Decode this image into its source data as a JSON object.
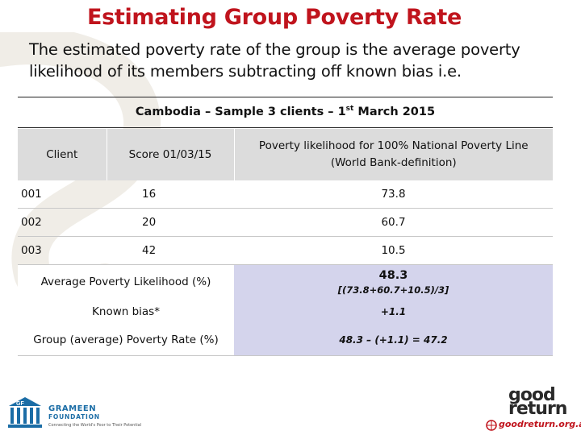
{
  "slide": {
    "title": "Estimating Group Poverty Rate",
    "intro": "The estimated poverty rate of the group is the average poverty likelihood of its members subtracting off known bias i.e."
  },
  "caption": {
    "prefix": "Cambodia – Sample 3 clients – 1",
    "sup": "st",
    "suffix": " March 2015"
  },
  "table": {
    "headers": {
      "client": "Client",
      "score": "Score 01/03/15",
      "likelihood_line1": "Poverty likelihood for 100% National Poverty Line",
      "likelihood_line2": "(World Bank-definition)"
    },
    "rows": [
      {
        "client": "001",
        "score": "16",
        "likelihood": "73.8"
      },
      {
        "client": "002",
        "score": "20",
        "likelihood": "60.7"
      },
      {
        "client": "003",
        "score": "42",
        "likelihood": "10.5"
      }
    ],
    "average": {
      "label": "Average Poverty Likelihood (%)",
      "value": "48.3",
      "formula": "[(73.8+60.7+10.5)/3]"
    },
    "bias": {
      "label": "Known bias*",
      "value": "+1.1"
    },
    "group": {
      "label": "Group (average) Poverty Rate (%)",
      "value": "48.3 – (+1.1) = 47.2"
    }
  },
  "logos": {
    "grameen": {
      "name": "GRAMEEN",
      "sub": "FOUNDATION",
      "tagline": "Connecting the World's Poor to Their Potential",
      "mark": "GF"
    },
    "goodreturn": {
      "line1": "good",
      "line2": "return",
      "url": "goodreturn.org.au"
    }
  },
  "colors": {
    "title": "#c0141d",
    "header_bg": "#dcdcdc",
    "summary_bg": "#d4d4ec",
    "brand_blue": "#1b6da6"
  }
}
